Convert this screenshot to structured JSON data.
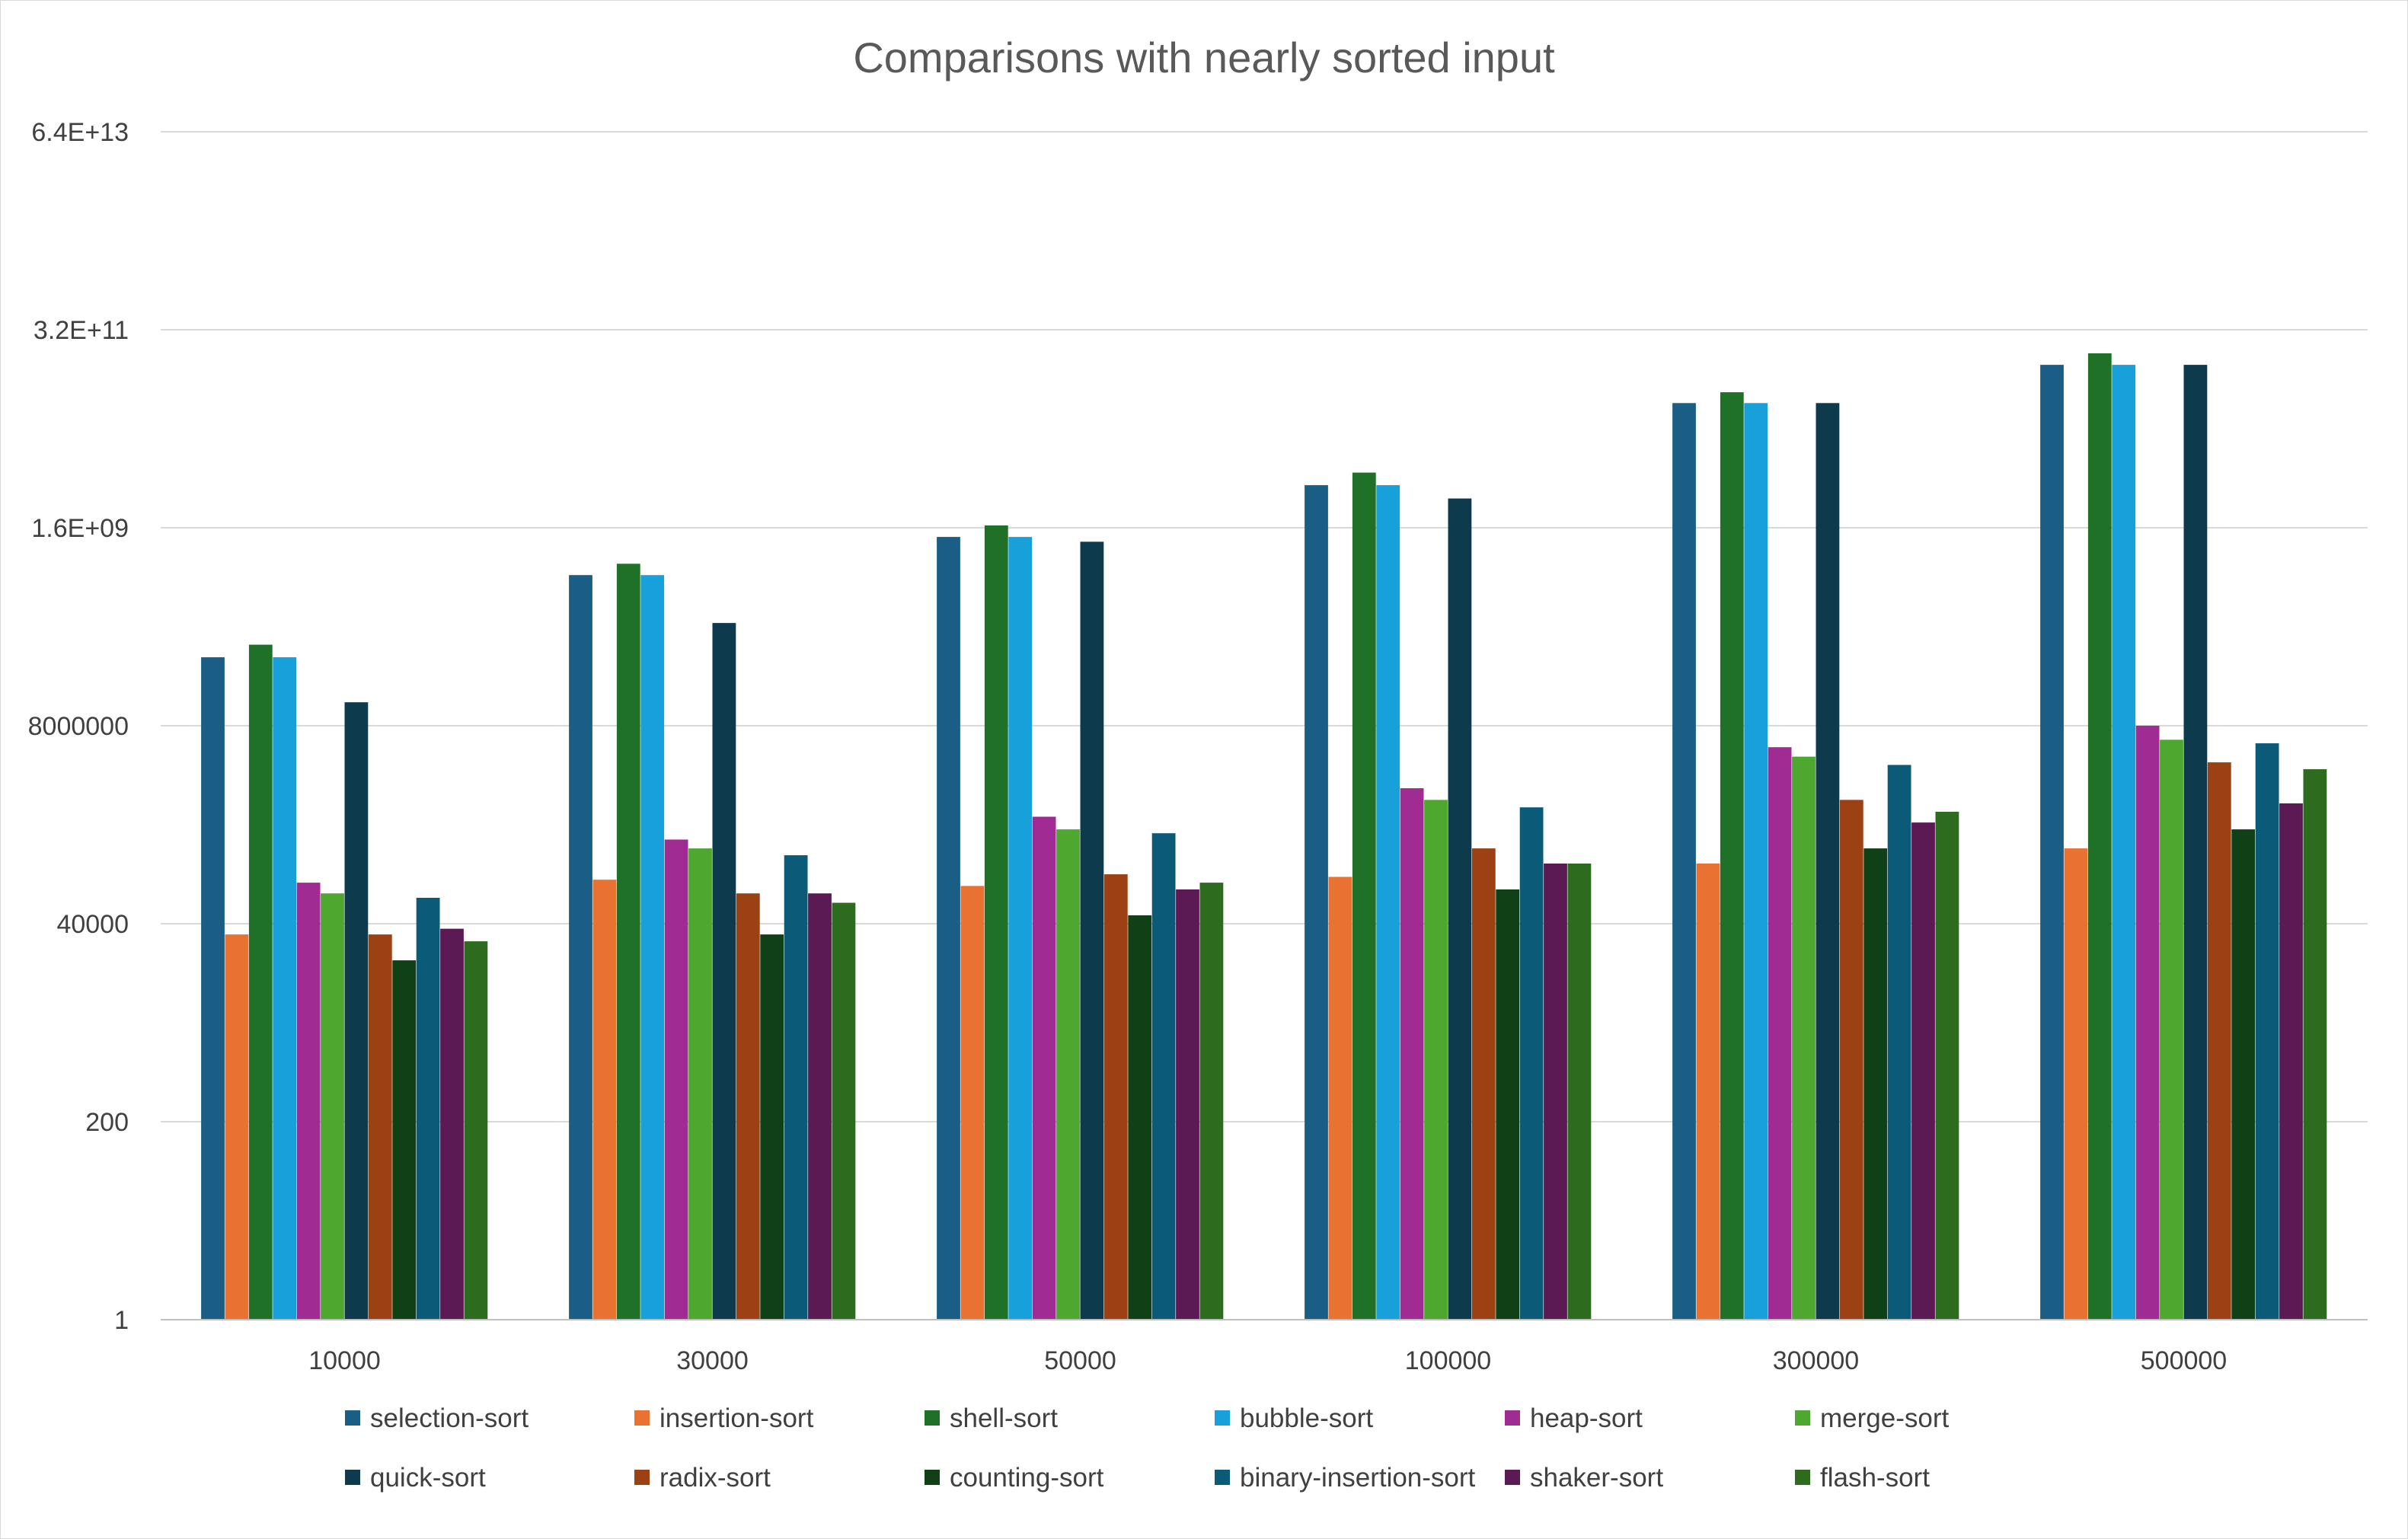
{
  "chart_data": {
    "type": "bar",
    "title": "Comparisons with nearly sorted input",
    "xlabel": "",
    "ylabel": "",
    "y_scale": "log",
    "y_tick_labels": [
      "1",
      "200",
      "40000",
      "8000000",
      "1.6E+09",
      "3.2E+11",
      "6.4E+13"
    ],
    "y_tick_values": [
      1,
      200,
      40000,
      8000000,
      1600000000,
      320000000000,
      64000000000000
    ],
    "ylim": [
      1,
      64000000000000
    ],
    "grid": true,
    "legend_position": "bottom",
    "categories": [
      "10000",
      "30000",
      "50000",
      "100000",
      "300000",
      "500000"
    ],
    "series": [
      {
        "name": "selection-sort",
        "color": "#1a5e86",
        "values": [
          50000000,
          450000000,
          1250000000,
          5000000000,
          45000000000,
          125000000000
        ]
      },
      {
        "name": "insertion-sort",
        "color": "#e97132",
        "values": [
          30000,
          130000,
          110000,
          140000,
          200000,
          300000
        ]
      },
      {
        "name": "shell-sort",
        "color": "#1e7127",
        "values": [
          70000000,
          610000000,
          1700000000,
          7000000000,
          60000000000,
          170000000000
        ]
      },
      {
        "name": "bubble-sort",
        "color": "#18a0db",
        "values": [
          50000000,
          450000000,
          1250000000,
          5000000000,
          45000000000,
          125000000000
        ]
      },
      {
        "name": "heap-sort",
        "color": "#a02b93",
        "values": [
          120000,
          380000,
          700000,
          1500000,
          4500000,
          8000000
        ]
      },
      {
        "name": "merge-sort",
        "color": "#4ea72e",
        "values": [
          90000,
          300000,
          500000,
          1100000,
          3500000,
          5500000
        ]
      },
      {
        "name": "quick-sort",
        "color": "#0e3a4e",
        "values": [
          15000000,
          125000000,
          1100000000,
          3500000000,
          45000000000,
          125000000000
        ]
      },
      {
        "name": "radix-sort",
        "color": "#9b4114",
        "values": [
          30000,
          90000,
          150000,
          300000,
          1100000,
          3000000
        ]
      },
      {
        "name": "counting-sort",
        "color": "#0f4016",
        "values": [
          15000,
          30000,
          50000,
          100000,
          300000,
          500000
        ]
      },
      {
        "name": "binary-insertion-sort",
        "color": "#0a5a78",
        "values": [
          80000,
          250000,
          450000,
          900000,
          2800000,
          5000000
        ]
      },
      {
        "name": "shaker-sort",
        "color": "#5c1a55",
        "values": [
          35000,
          90000,
          100000,
          200000,
          600000,
          1000000
        ]
      },
      {
        "name": "flash-sort",
        "color": "#2d6b1f",
        "values": [
          25000,
          70000,
          120000,
          200000,
          800000,
          2500000
        ]
      }
    ]
  }
}
